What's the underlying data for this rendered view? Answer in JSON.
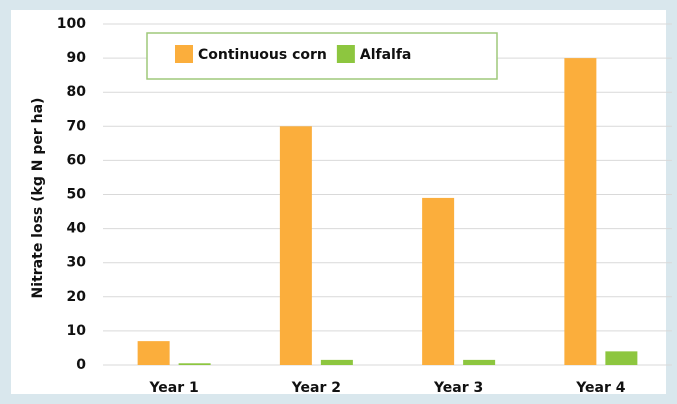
{
  "chart_data": {
    "type": "bar",
    "y_label": "Nitrate loss (kg N per ha)",
    "categories": [
      "Year 1",
      "Year 2",
      "Year 3",
      "Year 4"
    ],
    "series": [
      {
        "name": "Continuous corn",
        "color": "#fbae3c",
        "values": [
          7,
          70,
          49,
          90
        ]
      },
      {
        "name": "Alfalfa",
        "color": "#8dc63f",
        "values": [
          0.5,
          1.5,
          1.5,
          4
        ]
      }
    ],
    "ylim": [
      0,
      100
    ],
    "yticks": [
      0,
      10,
      20,
      30,
      40,
      50,
      60,
      70,
      80,
      90,
      100
    ],
    "grid": true
  }
}
